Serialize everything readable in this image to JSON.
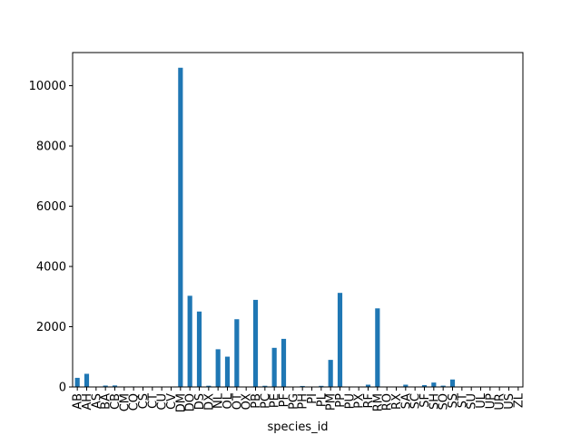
{
  "chart_data": {
    "type": "bar",
    "title": "",
    "xlabel": "species_id",
    "ylabel": "",
    "ylim": [
      0,
      11100
    ],
    "yticks": [
      0,
      2000,
      4000,
      6000,
      8000,
      10000
    ],
    "grid": false,
    "legend": "none",
    "bar_color": "#1f77b4",
    "categories": [
      "AB",
      "AH",
      "AS",
      "BA",
      "CB",
      "CM",
      "CQ",
      "CS",
      "CT",
      "CU",
      "CV",
      "DM",
      "DO",
      "DS",
      "DX",
      "NL",
      "OL",
      "OT",
      "OX",
      "PB",
      "PC",
      "PE",
      "PF",
      "PG",
      "PH",
      "PI",
      "PL",
      "PM",
      "PP",
      "PU",
      "PX",
      "RF",
      "RM",
      "RO",
      "RX",
      "SA",
      "SC",
      "SF",
      "SH",
      "SO",
      "SS",
      "ST",
      "SU",
      "UL",
      "UP",
      "UR",
      "US",
      "ZL"
    ],
    "values": [
      303,
      437,
      2,
      46,
      50,
      13,
      16,
      1,
      1,
      1,
      11,
      10596,
      3027,
      2504,
      40,
      1252,
      1006,
      2249,
      12,
      2891,
      39,
      1299,
      1597,
      8,
      32,
      9,
      36,
      899,
      3123,
      5,
      6,
      75,
      2609,
      8,
      2,
      75,
      1,
      62,
      147,
      43,
      248,
      1,
      5,
      4,
      8,
      10,
      4,
      2
    ]
  }
}
